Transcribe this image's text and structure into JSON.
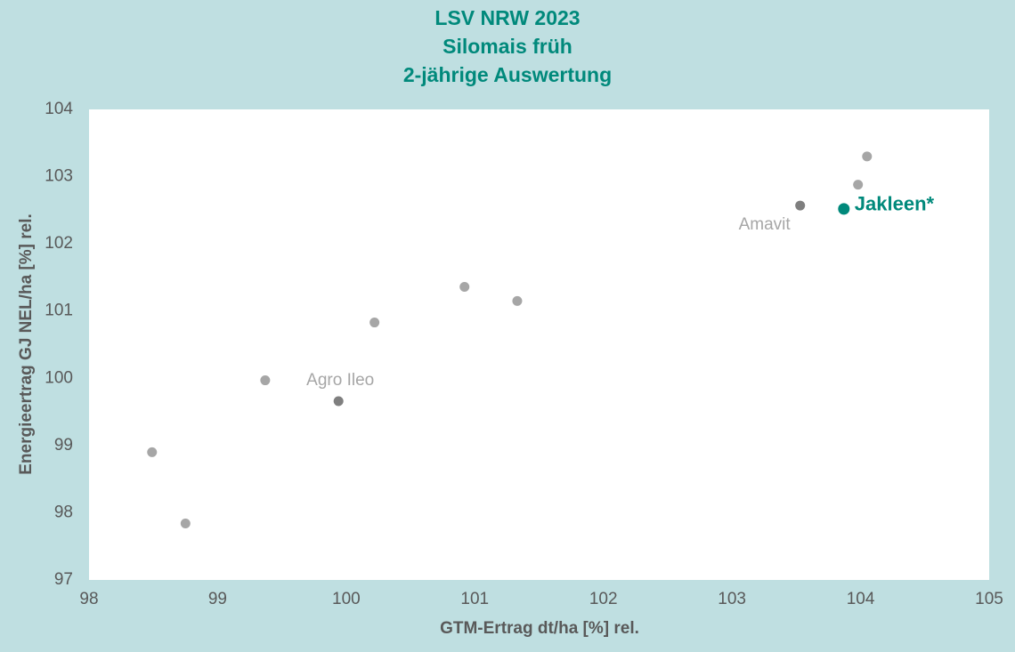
{
  "chart_data": {
    "type": "scatter",
    "title": [
      "LSV NRW 2023",
      "Silomais früh",
      "2-jährige Auswertung"
    ],
    "x_label": "GTM-Ertrag dt/ha [%] rel.",
    "y_label": "Energieertrag GJ NEL/ha [%] rel.",
    "x": [
      98.49,
      98.75,
      99.37,
      99.94,
      100.22,
      100.92,
      101.33,
      103.53,
      103.87,
      103.98,
      104.05
    ],
    "y": [
      98.9,
      97.84,
      99.97,
      99.66,
      100.83,
      101.36,
      101.15,
      102.57,
      102.52,
      102.88,
      103.3
    ],
    "labels": [
      null,
      null,
      null,
      "Agro Ileo",
      null,
      null,
      null,
      "Amavit",
      "Jakleen*",
      null,
      null
    ],
    "colors": [
      "#a6a6a6",
      "#a6a6a6",
      "#a6a6a6",
      "#7f7f7f",
      "#a6a6a6",
      "#a6a6a6",
      "#a6a6a6",
      "#7f7f7f",
      "#00897b",
      "#a6a6a6",
      "#a6a6a6"
    ],
    "highlight_color": "#00897b",
    "xlim": [
      98,
      105
    ],
    "xticks": [
      98,
      99,
      100,
      101,
      102,
      103,
      104,
      105
    ],
    "ylim": [
      97,
      104
    ],
    "yticks": [
      97,
      98,
      99,
      100,
      101,
      102,
      103,
      104
    ],
    "grid": false
  }
}
